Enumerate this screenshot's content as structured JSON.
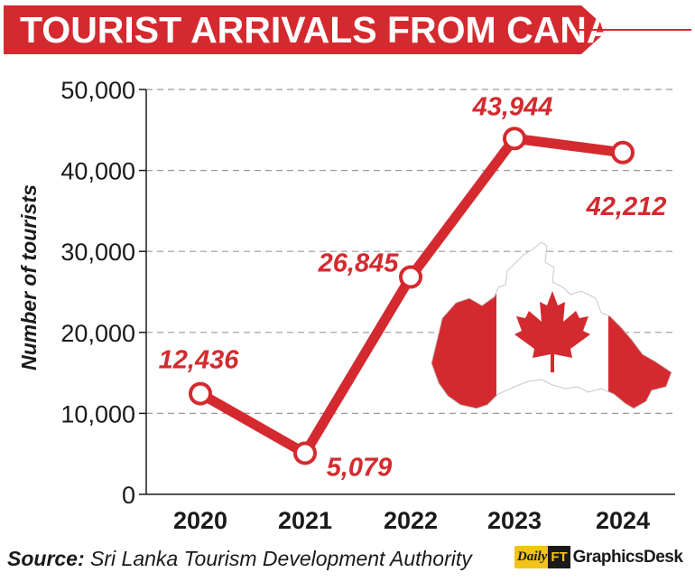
{
  "title": "TOURIST ARRIVALS FROM CANADA",
  "source_label": "Source:",
  "source_text": "Sri Lanka Tourism Development Authority",
  "logo": {
    "daily": "Daily",
    "ft": "FT",
    "desk": "GraphicsDesk"
  },
  "colors": {
    "accent": "#d42a2f",
    "grid": "#9a9a9a",
    "axis": "#1a1a1a"
  },
  "chart_data": {
    "type": "line",
    "categories": [
      "2020",
      "2021",
      "2022",
      "2023",
      "2024"
    ],
    "values": [
      12436,
      5079,
      26845,
      43944,
      42212
    ],
    "value_labels": [
      "12,436",
      "5,079",
      "26,845",
      "43,944",
      "42,212"
    ],
    "ylabel": "Number of tourists",
    "ylim": [
      0,
      50000
    ],
    "yticks": [
      0,
      10000,
      20000,
      30000,
      40000,
      50000
    ],
    "ytick_labels": [
      "0",
      "10,000",
      "20,000",
      "30,000",
      "40,000",
      "50,000"
    ],
    "grid": "horizontal dashed",
    "legend": "none"
  }
}
